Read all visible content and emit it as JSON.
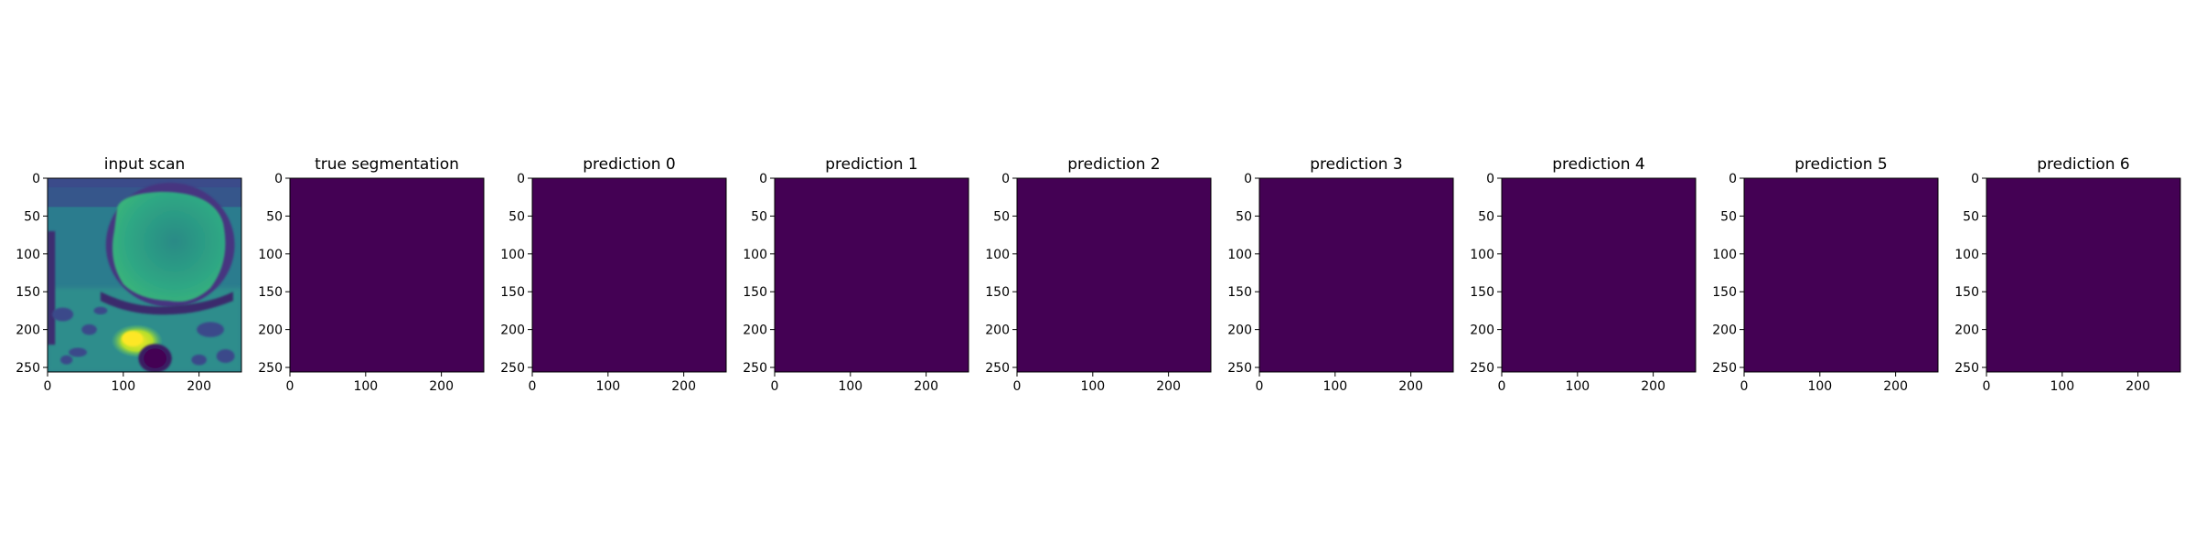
{
  "chart_data": {
    "type": "heatmap",
    "colormap": "viridis",
    "image_size": [
      256,
      256
    ],
    "x_ticks": [
      0,
      100,
      200
    ],
    "y_ticks": [
      0,
      50,
      100,
      150,
      200,
      250
    ],
    "panels": [
      {
        "title": "input scan",
        "content": "mri-scan-image"
      },
      {
        "title": "true segmentation",
        "fill_value": 0
      },
      {
        "title": "prediction 0",
        "fill_value": 0
      },
      {
        "title": "prediction 1",
        "fill_value": 0
      },
      {
        "title": "prediction 2",
        "fill_value": 0
      },
      {
        "title": "prediction 3",
        "fill_value": 0
      },
      {
        "title": "prediction 4",
        "fill_value": 0
      },
      {
        "title": "prediction 5",
        "fill_value": 0
      },
      {
        "title": "prediction 6",
        "fill_value": 0
      }
    ],
    "colors": {
      "background": "#440154",
      "viridis_dark": "#440154",
      "viridis_teal": "#21918c",
      "viridis_green": "#5ec962",
      "viridis_yellow": "#fde725",
      "axes": "#000000"
    }
  }
}
